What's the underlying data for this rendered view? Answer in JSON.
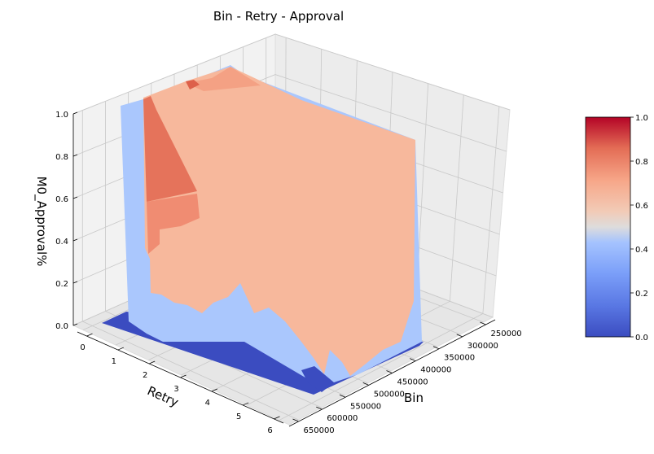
{
  "chart_data": {
    "type": "surface3d",
    "title": "Bin - Retry - Approval",
    "xlabel": "Bin",
    "ylabel": "Retry",
    "zlabel": "M0_Approval%",
    "x_ticks": [
      "250000",
      "300000",
      "350000",
      "400000",
      "450000",
      "500000",
      "550000",
      "600000",
      "650000"
    ],
    "y_ticks": [
      "0",
      "1",
      "2",
      "3",
      "4",
      "5",
      "6"
    ],
    "z_ticks": [
      "0.0",
      "0.2",
      "0.4",
      "0.6",
      "0.8",
      "1.0"
    ],
    "xlim": [
      230000,
      670000
    ],
    "ylim": [
      -0.3,
      6.3
    ],
    "zlim": [
      0,
      1
    ],
    "colormap": "coolwarm",
    "colorbar": {
      "ticks": [
        "0.0",
        "0.2",
        "0.4",
        "0.6",
        "0.8",
        "1.0"
      ],
      "range": [
        0,
        1
      ],
      "colors": [
        "#3b4cc0",
        "#6788ee",
        "#9abbff",
        "#c9d7f0",
        "#edd1c2",
        "#f7a889",
        "#e26952",
        "#b40426"
      ]
    },
    "surface": {
      "high_plateau_value": 0.67,
      "mid_value": 0.3,
      "low_value": 0.02,
      "peak_value": 0.8
    }
  }
}
